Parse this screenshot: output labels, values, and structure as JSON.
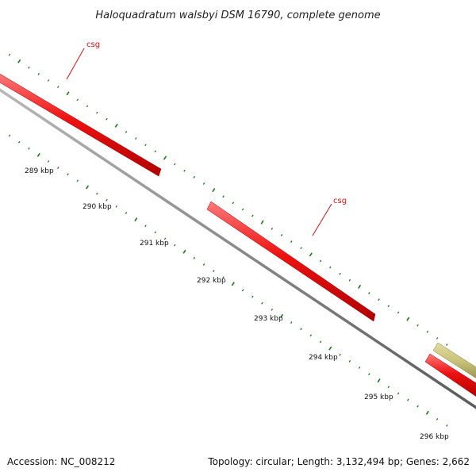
{
  "title": "Haloquadratum walsbyi DSM 16790, complete genome",
  "footer": {
    "accession": "Accession: NC_008212",
    "summary": "Topology: circular; Length: 3,132,494 bp; Genes: 2,662"
  },
  "colors": {
    "background": "#ffffff",
    "backbone": "#8a8a8a",
    "gene_red": "#ee1111",
    "gene_olive": "#c8c27a",
    "tick_green": "#1a7a1a",
    "gene_label_red": "#dd1111",
    "label_text": "#111111"
  },
  "scale_labels": [
    "289 kbp",
    "290 kbp",
    "291 kbp",
    "292 kbp",
    "293 kbp",
    "294 kbp",
    "295 kbp",
    "296 kbp"
  ],
  "gene_labels": [
    {
      "text": "csg",
      "color": "#dd1111"
    },
    {
      "text": "csg",
      "color": "#dd1111"
    }
  ],
  "features": [
    {
      "type": "gene",
      "color": "red"
    },
    {
      "type": "gene",
      "color": "red"
    },
    {
      "type": "gene",
      "color": "red"
    },
    {
      "type": "gene",
      "color": "olive"
    }
  ]
}
